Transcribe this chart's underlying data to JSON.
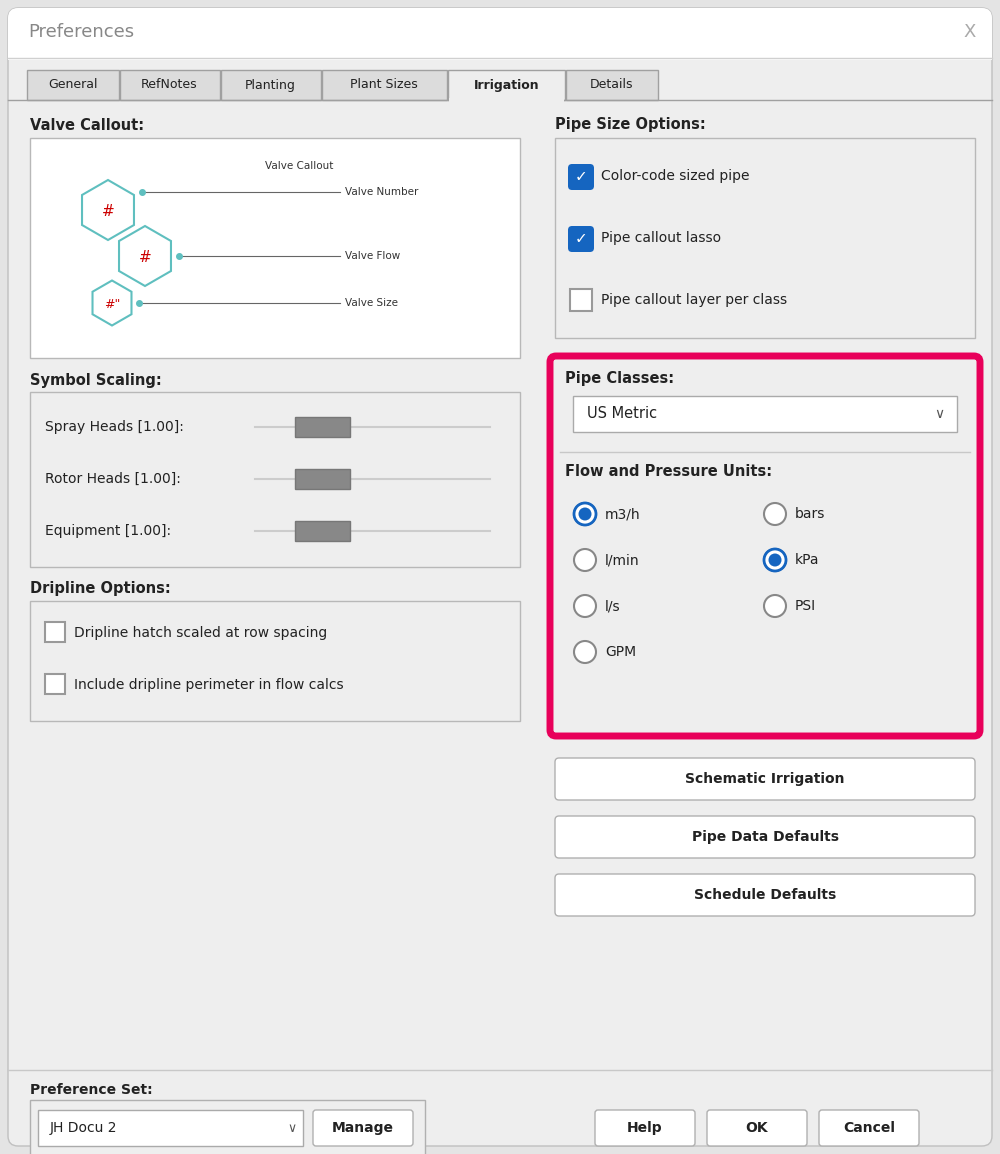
{
  "title": "Preferences",
  "bg_color": "#e4e4e4",
  "dialog_bg": "#eeeeee",
  "white": "#ffffff",
  "tab_active": "Irrigation",
  "tabs": [
    "General",
    "RefNotes",
    "Planting",
    "Plant Sizes",
    "Irrigation",
    "Details"
  ],
  "valve_callout_title": "Valve Callout:",
  "symbol_scaling_title": "Symbol Scaling:",
  "symbol_scaling_items": [
    "Spray Heads [1.00]:",
    "Rotor Heads [1.00]:",
    "Equipment [1.00]:"
  ],
  "dripline_title": "Dripline Options:",
  "dripline_items": [
    "Dripline hatch scaled at row spacing",
    "Include dripline perimeter in flow calcs"
  ],
  "pipe_size_title": "Pipe Size Options:",
  "pipe_size_items": [
    "Color-code sized pipe",
    "Pipe callout lasso",
    "Pipe callout layer per class"
  ],
  "pipe_size_checked": [
    true,
    true,
    false
  ],
  "pipe_classes_title": "Pipe Classes:",
  "pipe_classes_value": "US Metric",
  "flow_pressure_title": "Flow and Pressure Units:",
  "flow_options": [
    "m3/h",
    "l/min",
    "l/s",
    "GPM"
  ],
  "flow_selected": "m3/h",
  "pressure_options": [
    "bars",
    "kPa",
    "PSI"
  ],
  "pressure_selected": "kPa",
  "highlight_color": "#e8005a",
  "blue_check": "#1565c0",
  "blue_radio": "#1565c0",
  "bottom_buttons": [
    "Schematic Irrigation",
    "Pipe Data Defaults",
    "Schedule Defaults"
  ],
  "footer_label": "Preference Set:",
  "footer_dropdown": "JH Docu 2",
  "teal_color": "#5fbfbf",
  "red_text": "#cc0000"
}
